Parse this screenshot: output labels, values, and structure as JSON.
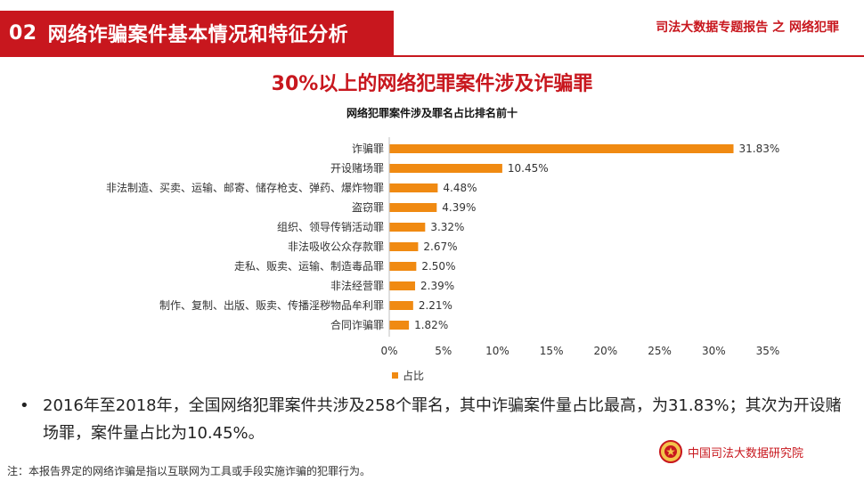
{
  "header": {
    "section_num": "02",
    "section_title": "网络诈骗案件基本情况和特征分析",
    "report_title": "司法大数据专题报告 之 网络犯罪"
  },
  "slide_title": "30%以上的网络犯罪案件涉及诈骗罪",
  "chart_data": {
    "type": "bar",
    "orientation": "horizontal",
    "title": "网络犯罪案件涉及罪名占比排名前十",
    "categories": [
      "诈骗罪",
      "开设赌场罪",
      "非法制造、买卖、运输、邮寄、储存枪支、弹药、爆炸物罪",
      "盗窃罪",
      "组织、领导传销活动罪",
      "非法吸收公众存款罪",
      "走私、贩卖、运输、制造毒品罪",
      "非法经营罪",
      "制作、复制、出版、贩卖、传播淫秽物品牟利罪",
      "合同诈骗罪"
    ],
    "series": [
      {
        "name": "占比",
        "values": [
          31.83,
          10.45,
          4.48,
          4.39,
          3.32,
          2.67,
          2.5,
          2.39,
          2.21,
          1.82
        ],
        "labels": [
          "31.83%",
          "10.45%",
          "4.48%",
          "4.39%",
          "3.32%",
          "2.67%",
          "2.50%",
          "2.39%",
          "2.21%",
          "1.82%"
        ],
        "color": "#f08a12"
      }
    ],
    "xlim": [
      0,
      35
    ],
    "x_ticks": [
      0,
      5,
      10,
      15,
      20,
      25,
      30,
      35
    ],
    "x_tick_labels": [
      "0%",
      "5%",
      "10%",
      "15%",
      "20%",
      "25%",
      "30%",
      "35%"
    ],
    "grid": false,
    "legend_placement": "bottom-left"
  },
  "bullet": {
    "marker": "•",
    "text": "2016年至2018年，全国网络犯罪案件共涉及258个罪名，其中诈骗案件量占比最高，为31.83%；其次为开设赌场罪，案件量占比为10.45%。"
  },
  "logo": {
    "icon": "court-emblem-icon",
    "text": "中国司法大数据研究院"
  },
  "footnote": "注：本报告界定的网络诈骗是指以互联网为工具或手段实施诈骗的犯罪行为。",
  "colors": {
    "brand_red": "#c8171e",
    "bar_orange": "#f08a12"
  }
}
